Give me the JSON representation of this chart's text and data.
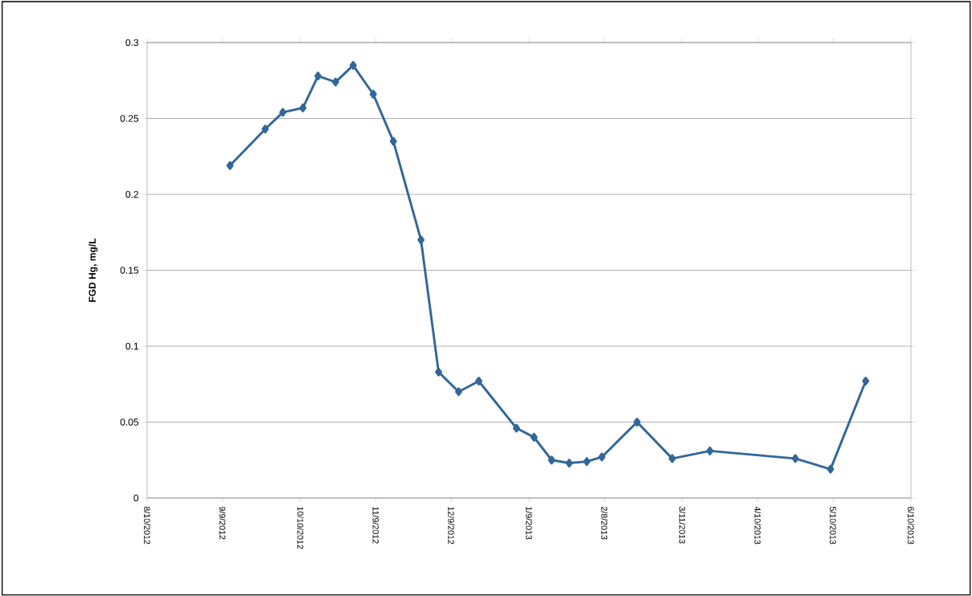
{
  "chart_data": {
    "type": "line",
    "ylabel": "FGD Hg, mg/L",
    "x": [
      "2012-09-12",
      "2012-09-26",
      "2012-10-03",
      "2012-10-11",
      "2012-10-17",
      "2012-10-24",
      "2012-10-31",
      "2012-11-08",
      "2012-11-16",
      "2012-11-27",
      "2012-12-04",
      "2012-12-12",
      "2012-12-20",
      "2013-01-04",
      "2013-01-11",
      "2013-01-18",
      "2013-01-25",
      "2013-02-01",
      "2013-02-07",
      "2013-02-21",
      "2013-03-07",
      "2013-03-22",
      "2013-04-25",
      "2013-05-09",
      "2013-05-23"
    ],
    "series": [
      {
        "color": "#336699",
        "values": [
          0.219,
          0.243,
          0.254,
          0.257,
          0.278,
          0.274,
          0.285,
          0.266,
          0.235,
          0.17,
          0.083,
          0.07,
          0.077,
          0.046,
          0.04,
          0.025,
          0.023,
          0.024,
          0.027,
          0.05,
          0.026,
          0.031,
          0.026,
          0.019,
          0.077
        ]
      }
    ],
    "xlim": [
      "2012-08-10",
      "2013-06-10"
    ],
    "xticks": [
      {
        "value": "2012-08-10",
        "label": "8/10/2012"
      },
      {
        "value": "2012-09-09",
        "label": "9/9/2012"
      },
      {
        "value": "2012-10-10",
        "label": "10/10/2012"
      },
      {
        "value": "2012-11-09",
        "label": "11/9/2012"
      },
      {
        "value": "2012-12-09",
        "label": "12/9/2012"
      },
      {
        "value": "2013-01-09",
        "label": "1/9/2013"
      },
      {
        "value": "2013-02-08",
        "label": "2/8/2013"
      },
      {
        "value": "2013-03-11",
        "label": "3/11/2013"
      },
      {
        "value": "2013-04-10",
        "label": "4/10/2013"
      },
      {
        "value": "2013-05-10",
        "label": "5/10/2013"
      },
      {
        "value": "2013-06-10",
        "label": "6/10/2013"
      }
    ],
    "ylim": [
      0,
      0.3
    ],
    "yticks": [
      0,
      0.05,
      0.1,
      0.15,
      0.2,
      0.25,
      0.3
    ],
    "grid": "y",
    "marker": "diamond",
    "line_style": "solid"
  }
}
